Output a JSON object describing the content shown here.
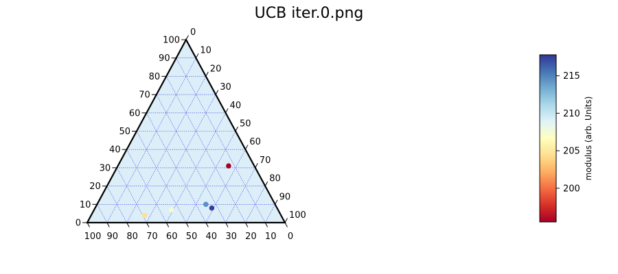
{
  "chart_data": {
    "type": "scatter",
    "subtype": "ternary",
    "title": "UCB iter.0.png",
    "axes": {
      "left": {
        "ticks": [
          "0",
          "10",
          "20",
          "30",
          "40",
          "50",
          "60",
          "70",
          "80",
          "90",
          "100"
        ]
      },
      "right": {
        "ticks": [
          "0",
          "10",
          "20",
          "30",
          "40",
          "50",
          "60",
          "70",
          "80",
          "90",
          "100"
        ]
      },
      "bottom": {
        "ticks": [
          "100",
          "90",
          "80",
          "70",
          "60",
          "50",
          "40",
          "30",
          "20",
          "10",
          "0"
        ]
      },
      "range": [
        0,
        100
      ],
      "grid": true,
      "grid_step": 10
    },
    "points": [
      {
        "a": 13,
        "b": 31,
        "value": 195.5
      },
      {
        "a": 33,
        "b": 8,
        "value": 217.5
      },
      {
        "a": 35,
        "b": 10,
        "value": 214.5
      },
      {
        "a": 54,
        "b": 7,
        "value": 207.5
      },
      {
        "a": 69,
        "b": 4,
        "value": 204.5
      }
    ],
    "colorbar": {
      "label": "modulus (arb. Units)",
      "min": 195.5,
      "max": 217.8,
      "ticks": [
        "200",
        "205",
        "210",
        "215"
      ],
      "tick_values": [
        200,
        205,
        210,
        215
      ],
      "colormap": [
        "#a50026",
        "#d73027",
        "#f46d43",
        "#fdae61",
        "#fee090",
        "#ffffbf",
        "#e0f3f8",
        "#abd9e9",
        "#74add1",
        "#4575b4",
        "#313695"
      ]
    },
    "background_fill": "#dceef8"
  }
}
